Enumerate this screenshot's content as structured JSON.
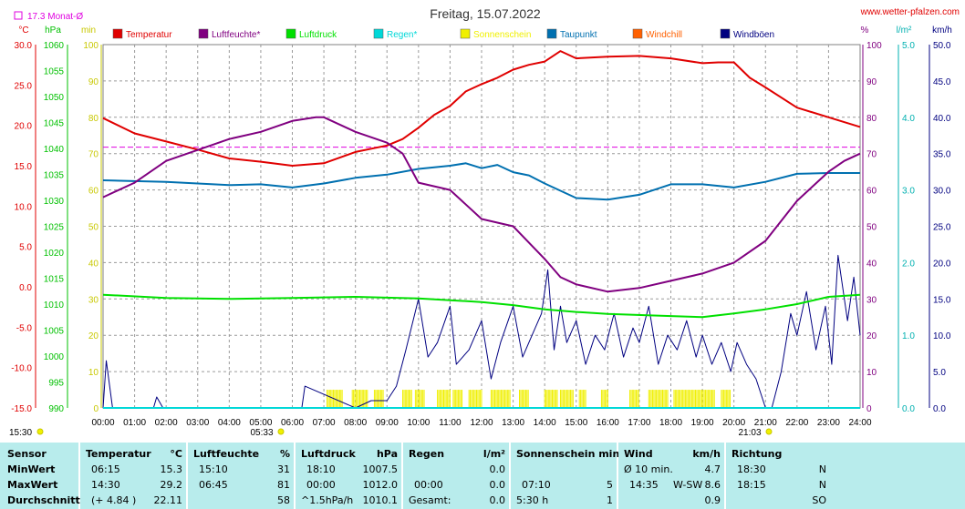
{
  "header": {
    "title": "Freitag, 15.07.2022",
    "site": "www.wetter-pfalzen.com",
    "month_avg": "17.3 Monat-Ø"
  },
  "axis_units": {
    "celsius": "°C",
    "hpa": "hPa",
    "min": "min",
    "percent": "%",
    "lm2": "l/m²",
    "kmh": "km/h"
  },
  "footer": {
    "sunrise": "05:33",
    "sunset": "21:03",
    "left_time": "15:30"
  },
  "colors": {
    "temperature": "#e00000",
    "humidity": "#800080",
    "pressure": "#00e000",
    "rain": "#00d8d8",
    "sunshine": "#f0f000",
    "dewpoint": "#0070b0",
    "windchill": "#ff6000",
    "gusts": "#000080",
    "monthavg": "#e000e0",
    "table_bg": "#b8ecec"
  },
  "chart_data": {
    "type": "line",
    "title": "Freitag, 15.07.2022",
    "x_ticks": [
      "00:00",
      "01:00",
      "02:00",
      "03:00",
      "04:00",
      "05:00",
      "06:00",
      "07:00",
      "08:00",
      "09:00",
      "10:00",
      "11:00",
      "12:00",
      "13:00",
      "14:00",
      "15:00",
      "16:00",
      "17:00",
      "18:00",
      "19:00",
      "20:00",
      "21:00",
      "22:00",
      "23:00",
      "24:00"
    ],
    "x_range_hours": [
      0,
      24
    ],
    "grid": true,
    "legend_position": "top",
    "axes": {
      "temperature": {
        "ticks": [
          "30.0",
          "25.0",
          "20.0",
          "15.0",
          "10.0",
          "5.0",
          "0.0",
          "-5.0",
          "-10.0",
          "-15.0"
        ],
        "range": [
          -15,
          30
        ]
      },
      "pressure": {
        "ticks": [
          "1060",
          "1055",
          "1050",
          "1045",
          "1040",
          "1035",
          "1030",
          "1025",
          "1020",
          "1015",
          "1010",
          "1005",
          "1000",
          "995",
          "990"
        ],
        "range": [
          990,
          1060
        ]
      },
      "sunshine_min": {
        "ticks": [
          "100",
          "90",
          "80",
          "70",
          "60",
          "50",
          "40",
          "30",
          "20",
          "10",
          "0"
        ],
        "range": [
          0,
          100
        ]
      },
      "humidity_pct": {
        "ticks": [
          "100",
          "90",
          "80",
          "70",
          "60",
          "50",
          "40",
          "30",
          "20",
          "10",
          "0"
        ],
        "range": [
          0,
          100
        ]
      },
      "rain_lm2": {
        "ticks": [
          "5.0",
          "4.0",
          "3.0",
          "2.0",
          "1.0",
          "0.0"
        ],
        "range": [
          0,
          5
        ]
      },
      "wind_kmh": {
        "ticks": [
          "50.0",
          "45.0",
          "40.0",
          "35.0",
          "30.0",
          "25.0",
          "20.0",
          "15.0",
          "10.0",
          "5.0",
          "0.0"
        ],
        "range": [
          0,
          50
        ]
      }
    },
    "month_avg_temperature": 17.3,
    "series": [
      {
        "name": "Temperatur",
        "axis": "temperature",
        "color": "#e00000",
        "x": [
          0,
          1,
          2,
          3,
          4,
          5,
          6,
          7,
          8,
          9,
          9.5,
          10,
          10.5,
          11,
          11.5,
          12,
          12.5,
          13,
          13.5,
          14,
          14.5,
          15,
          16,
          17,
          18,
          19,
          19.5,
          20,
          20.5,
          21,
          22,
          23,
          24
        ],
        "y": [
          20.9,
          19.0,
          18.0,
          17.0,
          15.9,
          15.5,
          15.0,
          15.3,
          16.7,
          17.5,
          18.3,
          19.7,
          21.3,
          22.4,
          24.2,
          25.1,
          25.9,
          26.9,
          27.5,
          27.9,
          29.2,
          28.3,
          28.5,
          28.6,
          28.3,
          27.7,
          27.8,
          27.8,
          25.9,
          24.7,
          22.2,
          21.0,
          19.8
        ]
      },
      {
        "name": "Luftfeuchte*",
        "axis": "humidity_pct",
        "color": "#800080",
        "x": [
          0,
          1,
          2,
          3,
          4,
          5,
          6,
          6.75,
          7,
          8,
          9,
          9.5,
          10,
          11,
          12,
          13,
          14,
          14.5,
          15,
          16,
          17,
          18,
          19,
          20,
          21,
          22,
          23,
          23.5,
          24
        ],
        "y": [
          58,
          62,
          68,
          71,
          74,
          76,
          79,
          80,
          80,
          76,
          73,
          70,
          62,
          60,
          52,
          50,
          41,
          36,
          34,
          32,
          33,
          35,
          37,
          40,
          46,
          57,
          65,
          68,
          70
        ]
      },
      {
        "name": "Luftdruck",
        "axis": "pressure",
        "color": "#00e000",
        "x": [
          0,
          2,
          4,
          6,
          8,
          10,
          12,
          13,
          14,
          15,
          16,
          18,
          19,
          20,
          21,
          22,
          23,
          24
        ],
        "y": [
          1011.8,
          1011.2,
          1011.0,
          1011.2,
          1011.4,
          1011.1,
          1010.4,
          1009.8,
          1009.0,
          1008.5,
          1008.1,
          1007.7,
          1007.5,
          1008.2,
          1009.0,
          1010.0,
          1011.4,
          1011.8
        ]
      },
      {
        "name": "Regen*",
        "axis": "rain_lm2",
        "color": "#00d8d8",
        "x": [
          0,
          24
        ],
        "y": [
          0,
          0
        ]
      },
      {
        "name": "Sonnenschein",
        "axis": "sunshine_min",
        "color": "#f0f000",
        "intervals": [
          [
            7.1,
            7.6
          ],
          [
            7.9,
            8.4
          ],
          [
            8.6,
            8.9
          ],
          [
            9.5,
            9.8
          ],
          [
            9.9,
            10.2
          ],
          [
            10.6,
            11.0
          ],
          [
            11.1,
            11.4
          ],
          [
            11.6,
            12.0
          ],
          [
            12.3,
            12.9
          ],
          [
            13.2,
            13.5
          ],
          [
            14.0,
            14.4
          ],
          [
            14.5,
            14.9
          ],
          [
            15.1,
            15.3
          ],
          [
            15.8,
            16.0
          ],
          [
            16.7,
            17.0
          ],
          [
            17.3,
            17.9
          ],
          [
            18.1,
            19.4
          ],
          [
            19.6,
            19.9
          ]
        ]
      },
      {
        "name": "Taupunkt",
        "axis": "temperature",
        "color": "#0070b0",
        "x": [
          0,
          2,
          4,
          5,
          6,
          7,
          8,
          9,
          10,
          11,
          11.5,
          12,
          12.5,
          13,
          13.5,
          14,
          15,
          16,
          17,
          18,
          19,
          20,
          21,
          22,
          23,
          24
        ],
        "y": [
          13.2,
          13.0,
          12.6,
          12.7,
          12.3,
          12.8,
          13.5,
          13.9,
          14.6,
          15.0,
          15.3,
          14.7,
          15.1,
          14.2,
          13.8,
          12.8,
          11.0,
          10.8,
          11.4,
          12.7,
          12.7,
          12.3,
          13.0,
          14.0,
          14.1,
          14.1
        ]
      },
      {
        "name": "Windchill",
        "axis": "temperature",
        "color": "#ff6000",
        "x": [],
        "y": []
      },
      {
        "name": "Windböen",
        "axis": "wind_kmh",
        "color": "#000080",
        "x": [
          0,
          0.1,
          0.3,
          1.6,
          1.7,
          1.9,
          6.3,
          6.4,
          8.0,
          8.5,
          9.0,
          9.3,
          9.6,
          10.0,
          10.3,
          10.6,
          11.0,
          11.2,
          11.6,
          12.0,
          12.3,
          12.6,
          13.0,
          13.3,
          13.6,
          13.9,
          14.1,
          14.3,
          14.5,
          14.7,
          15.0,
          15.3,
          15.6,
          15.9,
          16.2,
          16.5,
          16.8,
          17.0,
          17.3,
          17.6,
          17.9,
          18.2,
          18.5,
          18.8,
          19.0,
          19.3,
          19.6,
          19.9,
          20.1,
          20.4,
          20.7,
          21.0,
          21.2,
          21.5,
          21.8,
          22.0,
          22.3,
          22.6,
          22.9,
          23.1,
          23.3,
          23.6,
          23.8,
          24.0
        ],
        "y": [
          0,
          6.5,
          0,
          0,
          1.5,
          0,
          0,
          3,
          0,
          1,
          1,
          3,
          8,
          15,
          7,
          9,
          14,
          6,
          8,
          12,
          4,
          9,
          14,
          7,
          10,
          13,
          19,
          8,
          14,
          9,
          12,
          6,
          10,
          8,
          13,
          7,
          11,
          9,
          14,
          6,
          10,
          8,
          12,
          7,
          10,
          6,
          9,
          5,
          9,
          6,
          4,
          0,
          0,
          5,
          13,
          10,
          16,
          8,
          14,
          6,
          21,
          12,
          18,
          10
        ]
      }
    ]
  },
  "table": {
    "row_labels": [
      "Sensor",
      "MinWert",
      "MaxWert",
      "Durchschnitt"
    ],
    "temperature": {
      "header": "Temperatur",
      "unit": "°C",
      "min_time": "06:15",
      "min": "15.3",
      "max_time": "14:30",
      "max": "29.2",
      "avg_note": "(+ 4.84 )",
      "avg": "22.11"
    },
    "humidity": {
      "header": "Luftfeuchte",
      "unit": "%",
      "min_time": "15:10",
      "min": "31",
      "max_time": "06:45",
      "max": "81",
      "avg": "58"
    },
    "pressure": {
      "header": "Luftdruck",
      "unit": "hPa",
      "min_time": "18:10",
      "min": "1007.5",
      "max_time": "00:00",
      "max": "1012.0",
      "avg_note": "^1.5hPa/h",
      "avg": "1010.1"
    },
    "rain": {
      "header": "Regen",
      "unit": "l/m²",
      "min": "0.0",
      "max_time": "00:00",
      "max": "0.0",
      "avg_note": "Gesamt:",
      "avg": "0.0"
    },
    "sunshine": {
      "header": "Sonnenschein min",
      "max_time": "07:10",
      "max": "5",
      "avg_note": "5:30 h",
      "avg": "1"
    },
    "wind": {
      "header": "Wind",
      "unit": "km/h",
      "min_note": "Ø 10 min.",
      "min": "4.7",
      "max_time": "14:35",
      "max_dir": "W-SW",
      "max": "8.6",
      "avg": "0.9"
    },
    "direction": {
      "header": "Richtung",
      "min_time": "18:30",
      "min": "N",
      "max_time": "18:15",
      "max": "N",
      "avg": "SO"
    }
  }
}
